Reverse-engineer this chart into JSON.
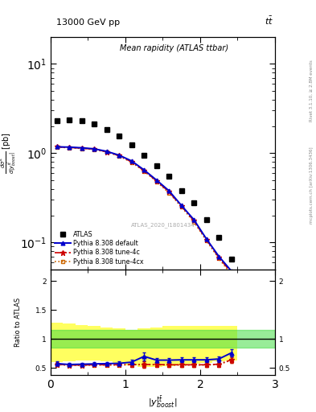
{
  "title_top": "13000 GeV pp",
  "title_right": "tt",
  "plot_title": "Mean rapidity (ATLAS ttbar)",
  "ylabel_ratio": "Ratio to ATLAS",
  "watermark": "ATLAS_2020_I1801434",
  "rivet_text": "Rivet 3.1.10, ≥ 2.8M events",
  "mcplots_text": "mcplots.cern.ch [arXiv:1306.3436]",
  "atlas_x": [
    0.083,
    0.25,
    0.417,
    0.583,
    0.75,
    0.917,
    1.083,
    1.25,
    1.417,
    1.583,
    1.75,
    1.917,
    2.083,
    2.25,
    2.417
  ],
  "atlas_y": [
    2.3,
    2.35,
    2.3,
    2.15,
    1.85,
    1.55,
    1.25,
    0.95,
    0.73,
    0.55,
    0.38,
    0.28,
    0.18,
    0.115,
    0.065
  ],
  "pythia_default_x": [
    0.083,
    0.25,
    0.417,
    0.583,
    0.75,
    0.917,
    1.083,
    1.25,
    1.417,
    1.583,
    1.75,
    1.917,
    2.083,
    2.25,
    2.417
  ],
  "pythia_default_y": [
    1.18,
    1.17,
    1.15,
    1.12,
    1.05,
    0.95,
    0.82,
    0.65,
    0.5,
    0.38,
    0.26,
    0.18,
    0.11,
    0.07,
    0.048
  ],
  "pythia_4c_x": [
    0.083,
    0.25,
    0.417,
    0.583,
    0.75,
    0.917,
    1.083,
    1.25,
    1.417,
    1.583,
    1.75,
    1.917,
    2.083,
    2.25,
    2.417
  ],
  "pythia_4c_y": [
    1.18,
    1.16,
    1.14,
    1.11,
    1.04,
    0.94,
    0.8,
    0.64,
    0.49,
    0.37,
    0.255,
    0.175,
    0.108,
    0.068,
    0.046
  ],
  "pythia_4cx_x": [
    0.083,
    0.25,
    0.417,
    0.583,
    0.75,
    0.917,
    1.083,
    1.25,
    1.417,
    1.583,
    1.75,
    1.917,
    2.083,
    2.25,
    2.417
  ],
  "pythia_4cx_y": [
    1.17,
    1.15,
    1.13,
    1.1,
    1.03,
    0.93,
    0.79,
    0.63,
    0.48,
    0.36,
    0.25,
    0.17,
    0.105,
    0.066,
    0.044
  ],
  "ratio_x": [
    0.083,
    0.25,
    0.417,
    0.583,
    0.75,
    0.917,
    1.083,
    1.25,
    1.417,
    1.583,
    1.75,
    1.917,
    2.083,
    2.25,
    2.417
  ],
  "ratio_default_y": [
    0.575,
    0.56,
    0.565,
    0.57,
    0.575,
    0.58,
    0.6,
    0.7,
    0.635,
    0.635,
    0.64,
    0.64,
    0.64,
    0.655,
    0.76
  ],
  "ratio_default_err": [
    0.035,
    0.03,
    0.028,
    0.027,
    0.027,
    0.028,
    0.04,
    0.065,
    0.04,
    0.038,
    0.038,
    0.04,
    0.042,
    0.048,
    0.06
  ],
  "ratio_4c_y": [
    0.565,
    0.55,
    0.55,
    0.555,
    0.555,
    0.555,
    0.56,
    0.56,
    0.56,
    0.555,
    0.555,
    0.555,
    0.555,
    0.565,
    0.64
  ],
  "ratio_4c_err": [
    0.033,
    0.028,
    0.026,
    0.025,
    0.025,
    0.026,
    0.036,
    0.058,
    0.036,
    0.034,
    0.034,
    0.036,
    0.038,
    0.044,
    0.055
  ],
  "ratio_4cx_y": [
    0.56,
    0.545,
    0.545,
    0.55,
    0.55,
    0.55,
    0.555,
    0.555,
    0.555,
    0.55,
    0.55,
    0.55,
    0.55,
    0.56,
    0.635
  ],
  "ratio_4cx_err": [
    0.033,
    0.027,
    0.025,
    0.024,
    0.024,
    0.025,
    0.035,
    0.056,
    0.035,
    0.033,
    0.033,
    0.035,
    0.037,
    0.043,
    0.053
  ],
  "green_band_lo": 0.85,
  "green_band_hi": 1.15,
  "yellow_band_edges": [
    0.0,
    0.167,
    0.333,
    0.5,
    0.667,
    0.833,
    1.0,
    1.167,
    1.333,
    1.5,
    1.667,
    1.833,
    2.0,
    2.167,
    2.333,
    2.5
  ],
  "yellow_band_lo": [
    0.6,
    0.62,
    0.63,
    0.63,
    0.61,
    0.58,
    0.55,
    0.52,
    0.52,
    0.53,
    0.55,
    0.57,
    0.59,
    0.61,
    0.63,
    0.65
  ],
  "yellow_band_hi": [
    1.28,
    1.26,
    1.24,
    1.22,
    1.2,
    1.18,
    1.16,
    1.18,
    1.2,
    1.22,
    1.22,
    1.22,
    1.22,
    1.22,
    1.22,
    1.22
  ],
  "atlas_color": "#000000",
  "default_color": "#0000CC",
  "tune4c_color": "#CC0000",
  "tune4cx_color": "#CC6600",
  "main_ylim_lo": 0.05,
  "main_ylim_hi": 20.0,
  "ratio_ylim_lo": 0.38,
  "ratio_ylim_hi": 2.2,
  "xlim_lo": 0.0,
  "xlim_hi": 3.0
}
